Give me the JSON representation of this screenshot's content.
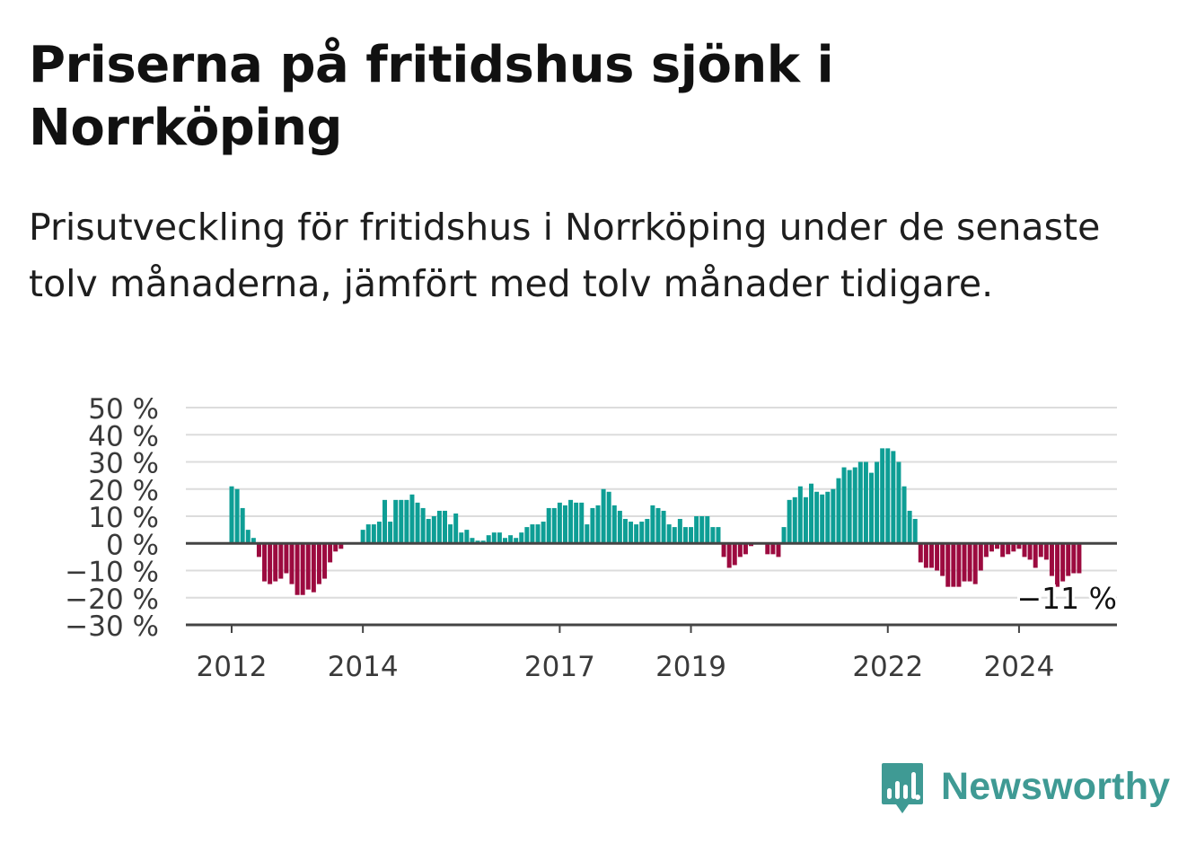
{
  "title": "Priserna på fritidshus sjönk i Norrköping",
  "subtitle": "Prisutveckling för fritidshus i Norrköping under de senaste tolv månaderna, jämfört med tolv månader tidigare.",
  "brand": {
    "name": "Newsworthy",
    "color": "#3f9a94",
    "icon": "newsworthy-chart-bubble-icon"
  },
  "colors": {
    "positive": "#0e9e95",
    "negative": "#9c0a3f",
    "grid": "#dcdcdc",
    "axis": "#444444"
  },
  "chart_data": {
    "type": "bar",
    "x_start": "2012-01",
    "x_end": "2025-01",
    "ylim": [
      -30,
      50
    ],
    "yticks": [
      50,
      40,
      30,
      20,
      10,
      0,
      -10,
      -20,
      -30
    ],
    "ytick_labels": [
      "50 %",
      "40 %",
      "30 %",
      "20 %",
      "10 %",
      "0 %",
      "−10 %",
      "−20 %",
      "−30 %"
    ],
    "xticks": [
      {
        "label": "2012",
        "date": "2012-01"
      },
      {
        "label": "2014",
        "date": "2014-01"
      },
      {
        "label": "2017",
        "date": "2017-01"
      },
      {
        "label": "2019",
        "date": "2019-01"
      },
      {
        "label": "2022",
        "date": "2022-01"
      },
      {
        "label": "2024",
        "date": "2024-01"
      }
    ],
    "last_value_label": "−11 %",
    "grid": true,
    "series": [
      {
        "start": "2012-01",
        "values": [
          21,
          20,
          13,
          5,
          2,
          -5,
          -14,
          -15,
          -14,
          -13,
          -11,
          -15,
          -19,
          -19,
          -17,
          -18,
          -15,
          -13,
          -7,
          -3,
          -2
        ]
      },
      {
        "start": "2013-11",
        "values": [
          0,
          0,
          5,
          7,
          7,
          8,
          16,
          8,
          16,
          16,
          16,
          18,
          15,
          13,
          9,
          10,
          12,
          12,
          7,
          11,
          4,
          5,
          2
        ]
      },
      {
        "start": "2015-10",
        "values": [
          1,
          1,
          3,
          4,
          4,
          2,
          3,
          2,
          4,
          6,
          7,
          7,
          8,
          13,
          13,
          15,
          14,
          16,
          15,
          15,
          7,
          13,
          14,
          20,
          19,
          14,
          12,
          9,
          8,
          7,
          8,
          9,
          14,
          13,
          12,
          7,
          6,
          9,
          6,
          6,
          10,
          10,
          10,
          6,
          6
        ]
      },
      {
        "start": "2019-07",
        "values": [
          -5,
          -9,
          -8,
          -5,
          -4,
          -1,
          0,
          0,
          -4,
          -4,
          -5
        ]
      },
      {
        "start": "2020-06",
        "values": [
          6,
          16,
          17,
          21,
          17,
          22,
          19,
          18,
          19,
          20,
          24,
          28,
          27,
          28,
          30,
          30,
          26,
          30,
          35,
          35,
          34,
          30,
          21,
          12,
          9
        ]
      },
      {
        "start": "2022-07",
        "values": [
          -7,
          -9,
          -9,
          -10,
          -12,
          -16,
          -16,
          -16,
          -14,
          -14,
          -15,
          -10,
          -5,
          -3,
          -2,
          -5,
          -4,
          -3,
          -2,
          -5,
          -6,
          -9,
          -5,
          -6,
          -12,
          -16,
          -14,
          -12,
          -11,
          -11
        ]
      }
    ]
  }
}
